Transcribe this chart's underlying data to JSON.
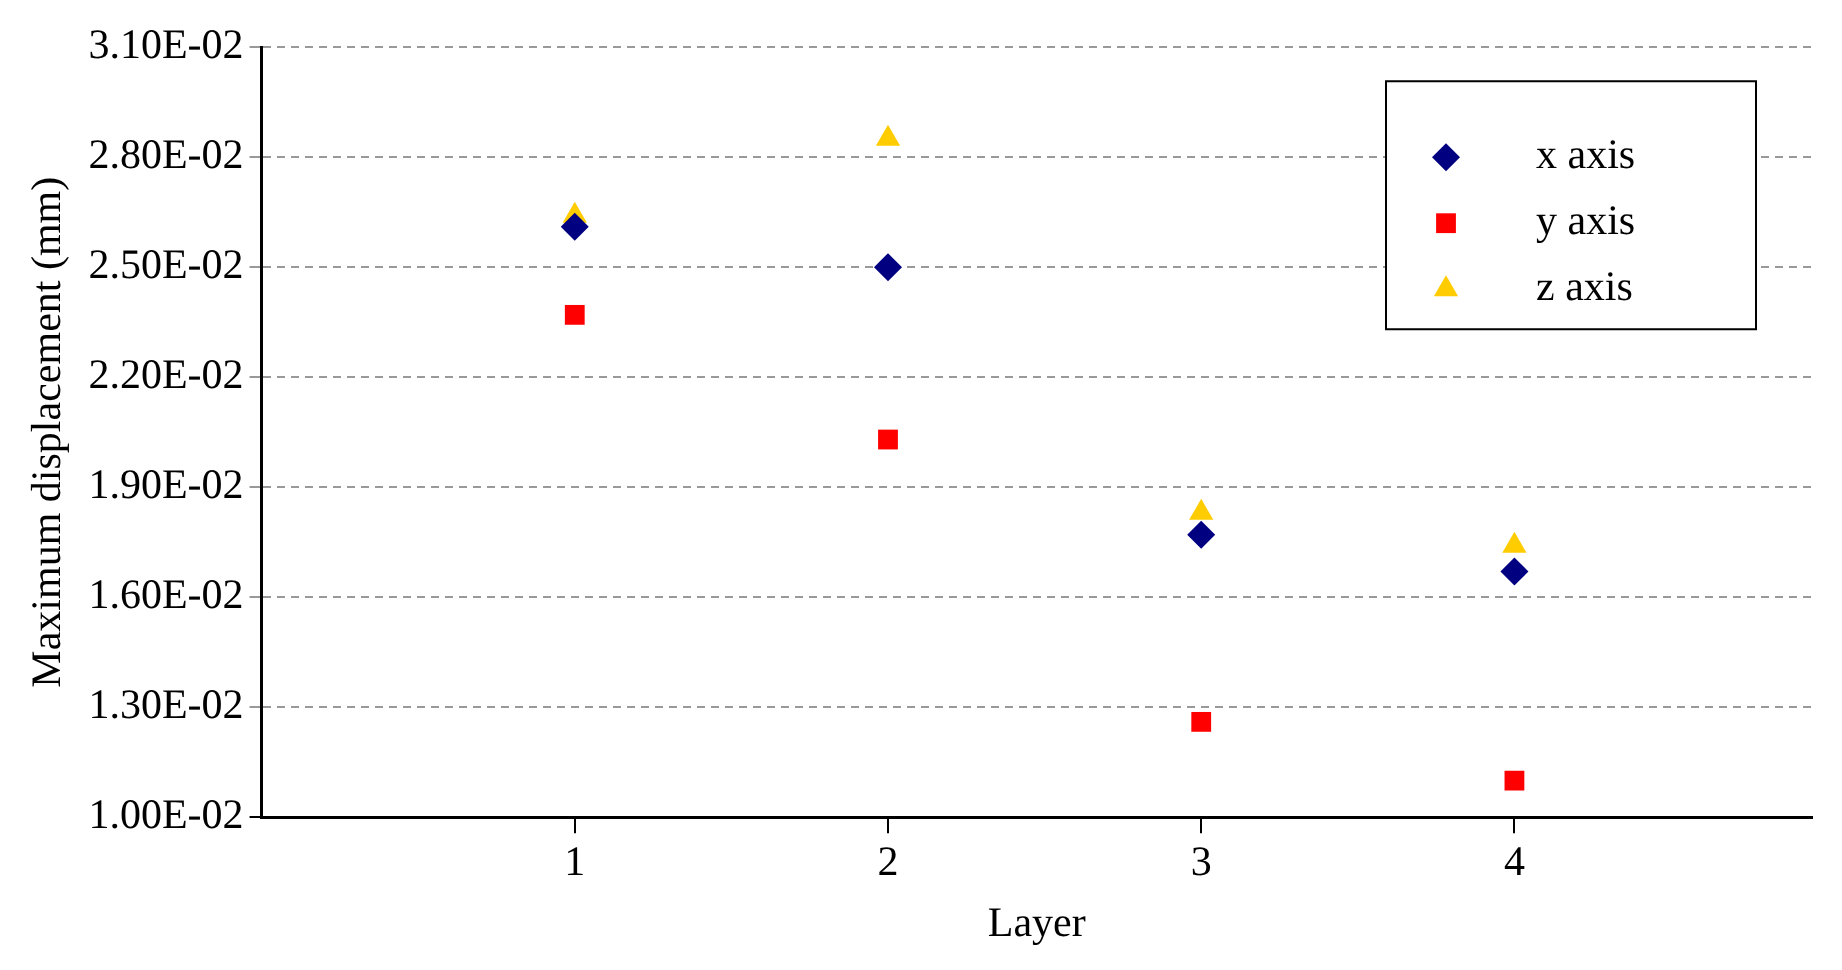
{
  "chart_data": {
    "type": "scatter",
    "xlabel": "Layer",
    "ylabel": "Maximum displacement (mm)",
    "x": [
      1,
      2,
      3,
      4
    ],
    "series": [
      {
        "name": "x axis",
        "color": "#000080",
        "marker": "diamond",
        "values": [
          0.0261,
          0.025,
          0.0177,
          0.0167
        ]
      },
      {
        "name": "y axis",
        "color": "#ff0000",
        "marker": "square",
        "values": [
          0.0237,
          0.0203,
          0.0126,
          0.011
        ]
      },
      {
        "name": "z axis",
        "color": "#ffcc00",
        "marker": "triangle",
        "values": [
          0.0264,
          0.0285,
          0.0183,
          0.0174
        ]
      }
    ],
    "xlim": [
      0,
      4.95
    ],
    "xticks": [
      1,
      2,
      3,
      4
    ],
    "ylim": [
      0.01,
      0.031
    ],
    "yticks": [
      {
        "value": 0.01,
        "label": "1.00E-02"
      },
      {
        "value": 0.013,
        "label": "1.30E-02"
      },
      {
        "value": 0.016,
        "label": "1.60E-02"
      },
      {
        "value": 0.019,
        "label": "1.90E-02"
      },
      {
        "value": 0.022,
        "label": "2.20E-02"
      },
      {
        "value": 0.025,
        "label": "2.50E-02"
      },
      {
        "value": 0.028,
        "label": "2.80E-02"
      },
      {
        "value": 0.031,
        "label": "3.10E-02"
      }
    ],
    "grid": "y",
    "legend": "top right"
  }
}
